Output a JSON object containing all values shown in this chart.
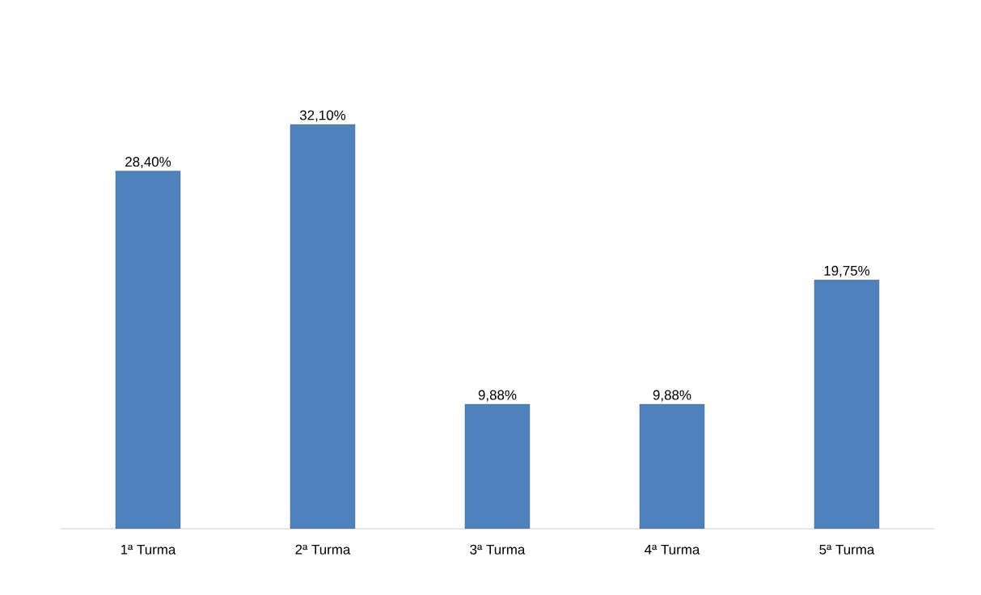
{
  "chart_data": {
    "type": "bar",
    "categories": [
      "1ª Turma",
      "2ª Turma",
      "3ª Turma",
      "4ª Turma",
      "5ª Turma"
    ],
    "values": [
      28.4,
      32.1,
      9.88,
      9.88,
      19.75
    ],
    "value_labels": [
      "28,40%",
      "32,10%",
      "9,88%",
      "9,88%",
      "19,75%"
    ],
    "color": "#4f81bd"
  }
}
